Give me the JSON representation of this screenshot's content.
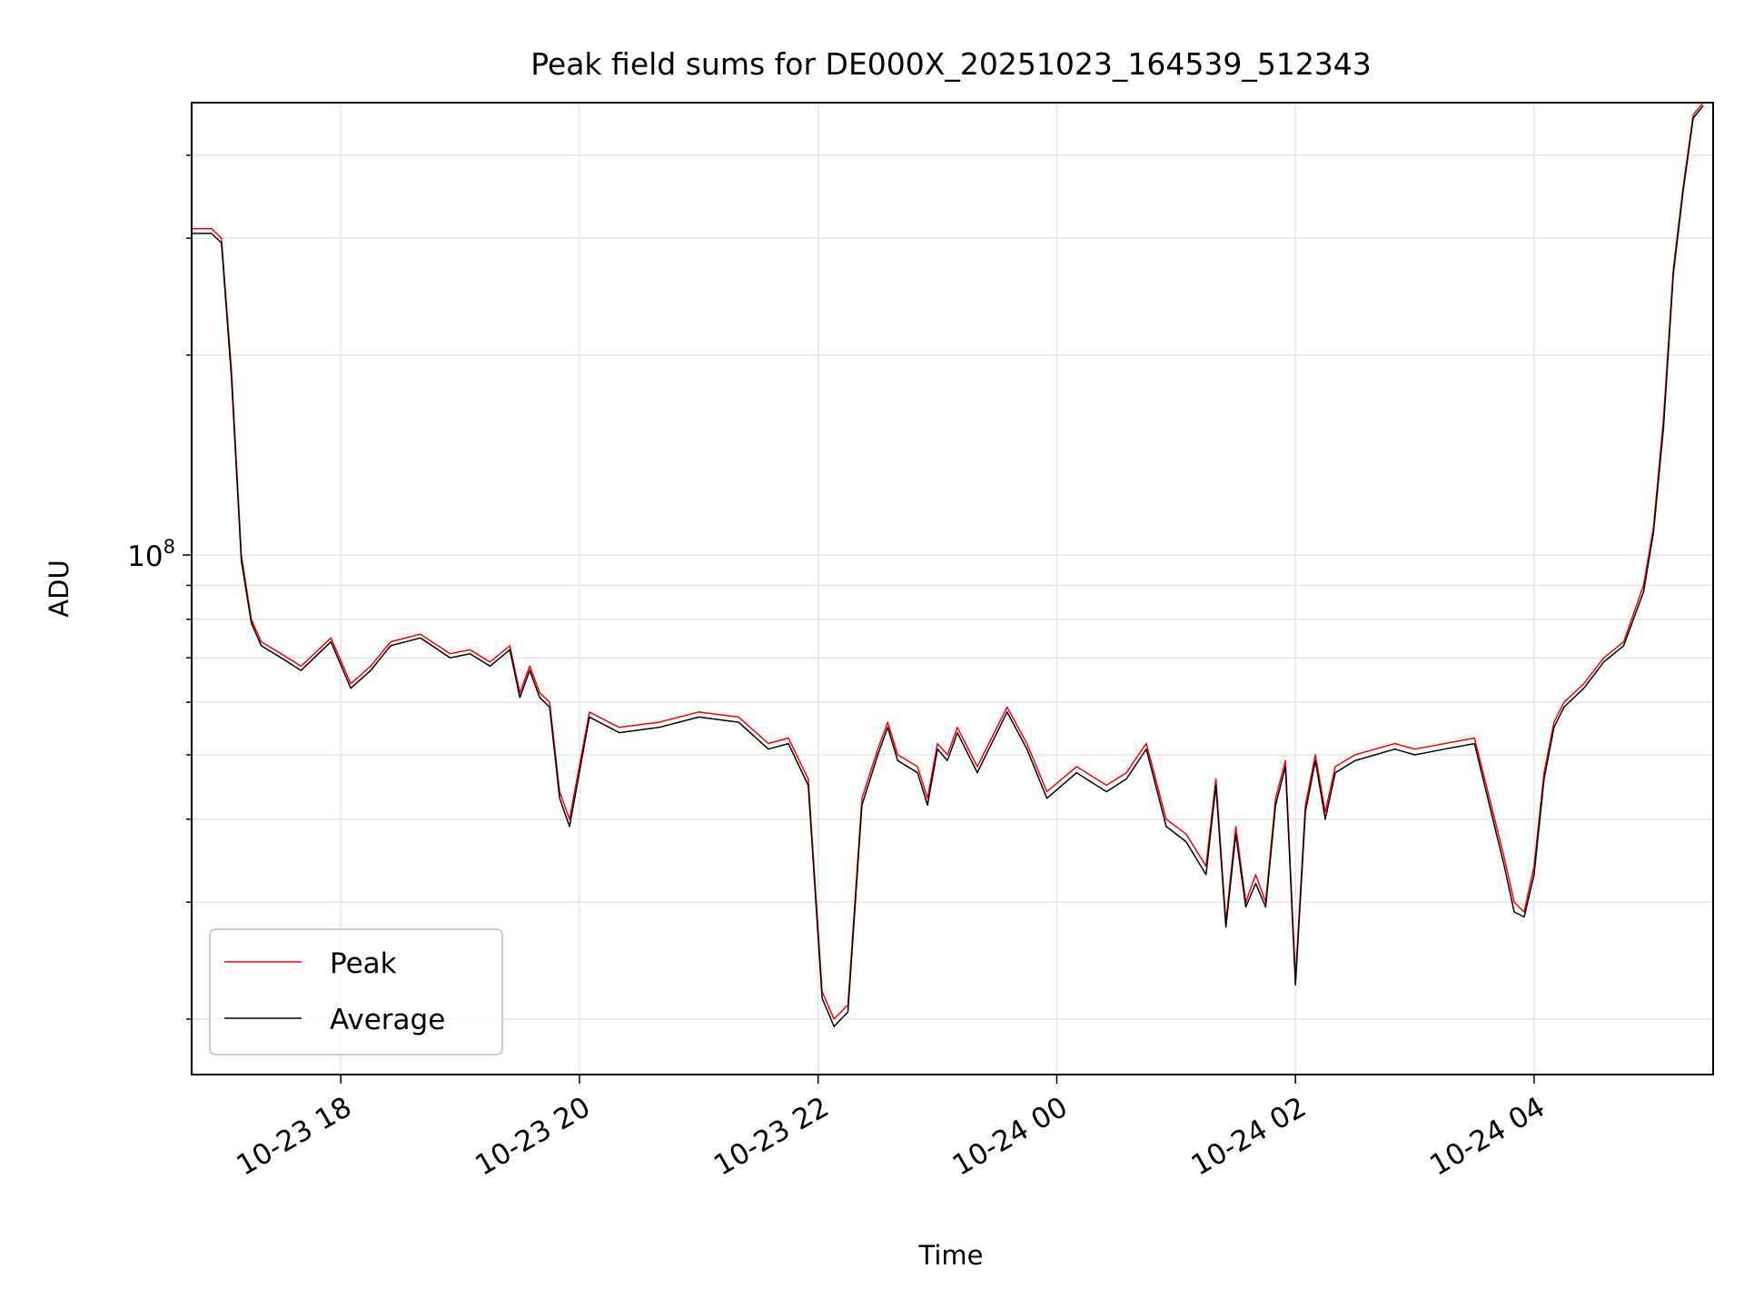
{
  "chart_data": {
    "type": "line",
    "title": "Peak field sums for DE000X_20251023_164539_512343",
    "xlabel": "Time",
    "ylabel": "ADU",
    "yscale": "log",
    "grid": true,
    "legend_position": "lower-left",
    "xlim": [
      "2025-10-23 16:45",
      "2025-10-24 05:30"
    ],
    "ylim": [
      16500000,
      480000000
    ],
    "xticks": [
      {
        "t": "2025-10-23 18:00",
        "label": "10-23 18"
      },
      {
        "t": "2025-10-23 20:00",
        "label": "10-23 20"
      },
      {
        "t": "2025-10-23 22:00",
        "label": "10-23 22"
      },
      {
        "t": "2025-10-24 00:00",
        "label": "10-24 00"
      },
      {
        "t": "2025-10-24 02:00",
        "label": "10-24 02"
      },
      {
        "t": "2025-10-24 04:00",
        "label": "10-24 04"
      }
    ],
    "yticks": [
      {
        "value": 100000000,
        "label_base": "10",
        "label_exp": "8"
      }
    ],
    "colors": {
      "Peak": "#ff0000",
      "Average": "#000000",
      "grid": "#e6e6e6"
    },
    "series": [
      {
        "name": "Peak",
        "x": [
          "2025-10-23 16:45",
          "2025-10-23 16:55",
          "2025-10-23 17:00",
          "2025-10-23 17:05",
          "2025-10-23 17:10",
          "2025-10-23 17:15",
          "2025-10-23 17:20",
          "2025-10-23 17:30",
          "2025-10-23 17:40",
          "2025-10-23 17:55",
          "2025-10-23 18:05",
          "2025-10-23 18:15",
          "2025-10-23 18:25",
          "2025-10-23 18:40",
          "2025-10-23 18:55",
          "2025-10-23 19:05",
          "2025-10-23 19:15",
          "2025-10-23 19:25",
          "2025-10-23 19:30",
          "2025-10-23 19:35",
          "2025-10-23 19:40",
          "2025-10-23 19:45",
          "2025-10-23 19:50",
          "2025-10-23 19:55",
          "2025-10-23 20:05",
          "2025-10-23 20:20",
          "2025-10-23 20:40",
          "2025-10-23 21:00",
          "2025-10-23 21:20",
          "2025-10-23 21:35",
          "2025-10-23 21:45",
          "2025-10-23 21:55",
          "2025-10-23 22:02",
          "2025-10-23 22:08",
          "2025-10-23 22:15",
          "2025-10-23 22:22",
          "2025-10-23 22:30",
          "2025-10-23 22:35",
          "2025-10-23 22:40",
          "2025-10-23 22:50",
          "2025-10-23 22:55",
          "2025-10-23 23:00",
          "2025-10-23 23:05",
          "2025-10-23 23:10",
          "2025-10-23 23:20",
          "2025-10-23 23:35",
          "2025-10-23 23:45",
          "2025-10-23 23:55",
          "2025-10-24 00:10",
          "2025-10-24 00:25",
          "2025-10-24 00:35",
          "2025-10-24 00:45",
          "2025-10-24 00:55",
          "2025-10-24 01:05",
          "2025-10-24 01:15",
          "2025-10-24 01:20",
          "2025-10-24 01:25",
          "2025-10-24 01:30",
          "2025-10-24 01:35",
          "2025-10-24 01:40",
          "2025-10-24 01:45",
          "2025-10-24 01:50",
          "2025-10-24 01:55",
          "2025-10-24 02:00",
          "2025-10-24 02:05",
          "2025-10-24 02:10",
          "2025-10-24 02:15",
          "2025-10-24 02:20",
          "2025-10-24 02:30",
          "2025-10-24 02:40",
          "2025-10-24 02:50",
          "2025-10-24 03:00",
          "2025-10-24 03:15",
          "2025-10-24 03:30",
          "2025-10-24 03:45",
          "2025-10-24 03:50",
          "2025-10-24 03:55",
          "2025-10-24 04:00",
          "2025-10-24 04:05",
          "2025-10-24 04:10",
          "2025-10-24 04:15",
          "2025-10-24 04:25",
          "2025-10-24 04:35",
          "2025-10-24 04:45",
          "2025-10-24 04:55",
          "2025-10-24 05:00",
          "2025-10-24 05:05",
          "2025-10-24 05:10",
          "2025-10-24 05:15",
          "2025-10-24 05:20",
          "2025-10-24 05:25"
        ],
        "y": [
          310000000,
          310000000,
          300000000,
          190000000,
          100000000,
          80000000,
          74000000,
          71000000,
          68000000,
          75000000,
          64000000,
          68000000,
          74000000,
          76000000,
          71000000,
          72000000,
          69000000,
          73000000,
          62000000,
          68000000,
          62000000,
          60000000,
          44000000,
          40000000,
          58000000,
          55000000,
          56000000,
          58000000,
          57000000,
          52000000,
          53000000,
          46000000,
          22000000,
          20000000,
          21000000,
          43000000,
          51000000,
          56000000,
          50000000,
          48000000,
          43000000,
          52000000,
          50000000,
          55000000,
          48000000,
          59000000,
          52000000,
          44000000,
          48000000,
          45000000,
          47000000,
          52000000,
          40000000,
          38000000,
          34000000,
          46000000,
          28000000,
          39000000,
          30000000,
          33000000,
          30000000,
          43000000,
          49000000,
          23000000,
          42000000,
          50000000,
          41000000,
          48000000,
          50000000,
          51000000,
          52000000,
          51000000,
          52000000,
          53000000,
          35000000,
          30000000,
          29000000,
          34000000,
          47000000,
          56000000,
          60000000,
          64000000,
          70000000,
          74000000,
          90000000,
          110000000,
          160000000,
          270000000,
          360000000,
          460000000,
          480000000
        ]
      },
      {
        "name": "Average",
        "x": [
          "2025-10-23 16:45",
          "2025-10-23 16:55",
          "2025-10-23 17:00",
          "2025-10-23 17:05",
          "2025-10-23 17:10",
          "2025-10-23 17:15",
          "2025-10-23 17:20",
          "2025-10-23 17:30",
          "2025-10-23 17:40",
          "2025-10-23 17:55",
          "2025-10-23 18:05",
          "2025-10-23 18:15",
          "2025-10-23 18:25",
          "2025-10-23 18:40",
          "2025-10-23 18:55",
          "2025-10-23 19:05",
          "2025-10-23 19:15",
          "2025-10-23 19:25",
          "2025-10-23 19:30",
          "2025-10-23 19:35",
          "2025-10-23 19:40",
          "2025-10-23 19:45",
          "2025-10-23 19:50",
          "2025-10-23 19:55",
          "2025-10-23 20:05",
          "2025-10-23 20:20",
          "2025-10-23 20:40",
          "2025-10-23 21:00",
          "2025-10-23 21:20",
          "2025-10-23 21:35",
          "2025-10-23 21:45",
          "2025-10-23 21:55",
          "2025-10-23 22:02",
          "2025-10-23 22:08",
          "2025-10-23 22:15",
          "2025-10-23 22:22",
          "2025-10-23 22:30",
          "2025-10-23 22:35",
          "2025-10-23 22:40",
          "2025-10-23 22:50",
          "2025-10-23 22:55",
          "2025-10-23 23:00",
          "2025-10-23 23:05",
          "2025-10-23 23:10",
          "2025-10-23 23:20",
          "2025-10-23 23:35",
          "2025-10-23 23:45",
          "2025-10-23 23:55",
          "2025-10-24 00:10",
          "2025-10-24 00:25",
          "2025-10-24 00:35",
          "2025-10-24 00:45",
          "2025-10-24 00:55",
          "2025-10-24 01:05",
          "2025-10-24 01:15",
          "2025-10-24 01:20",
          "2025-10-24 01:25",
          "2025-10-24 01:30",
          "2025-10-24 01:35",
          "2025-10-24 01:40",
          "2025-10-24 01:45",
          "2025-10-24 01:50",
          "2025-10-24 01:55",
          "2025-10-24 02:00",
          "2025-10-24 02:05",
          "2025-10-24 02:10",
          "2025-10-24 02:15",
          "2025-10-24 02:20",
          "2025-10-24 02:30",
          "2025-10-24 02:40",
          "2025-10-24 02:50",
          "2025-10-24 03:00",
          "2025-10-24 03:15",
          "2025-10-24 03:30",
          "2025-10-24 03:45",
          "2025-10-24 03:50",
          "2025-10-24 03:55",
          "2025-10-24 04:00",
          "2025-10-24 04:05",
          "2025-10-24 04:10",
          "2025-10-24 04:15",
          "2025-10-24 04:25",
          "2025-10-24 04:35",
          "2025-10-24 04:45",
          "2025-10-24 04:55",
          "2025-10-24 05:00",
          "2025-10-24 05:05",
          "2025-10-24 05:10",
          "2025-10-24 05:15",
          "2025-10-24 05:20",
          "2025-10-24 05:25"
        ],
        "y": [
          305000000,
          305000000,
          295000000,
          185000000,
          98000000,
          79000000,
          73000000,
          70000000,
          67000000,
          74000000,
          63000000,
          67000000,
          73000000,
          75000000,
          70000000,
          71000000,
          68000000,
          72000000,
          61000000,
          67000000,
          61000000,
          59000000,
          43000000,
          39000000,
          57000000,
          54000000,
          55000000,
          57000000,
          56000000,
          51000000,
          52000000,
          45000000,
          21500000,
          19500000,
          20500000,
          42000000,
          50000000,
          55000000,
          49000000,
          47000000,
          42000000,
          51000000,
          49000000,
          54000000,
          47000000,
          58000000,
          51000000,
          43000000,
          47000000,
          44000000,
          46000000,
          51000000,
          39000000,
          37000000,
          33000000,
          45000000,
          27500000,
          38000000,
          29500000,
          32000000,
          29500000,
          42000000,
          48000000,
          22500000,
          41000000,
          49000000,
          40000000,
          47000000,
          49000000,
          50000000,
          51000000,
          50000000,
          51000000,
          52000000,
          34000000,
          29000000,
          28500000,
          33000000,
          46000000,
          55000000,
          59000000,
          63000000,
          69000000,
          73000000,
          88000000,
          108000000,
          155000000,
          265000000,
          355000000,
          455000000,
          475000000
        ]
      }
    ]
  }
}
